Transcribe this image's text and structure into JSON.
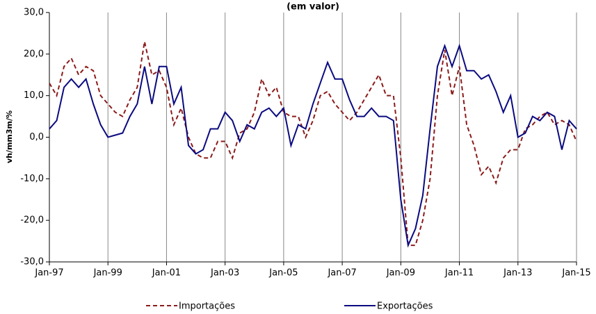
{
  "chart_data": {
    "type": "line",
    "title": "(em valor)",
    "y_label": "vh/mm3m/%",
    "x": [
      1997,
      1997.25,
      1997.5,
      1997.75,
      1998,
      1998.25,
      1998.5,
      1998.75,
      1999,
      1999.25,
      1999.5,
      1999.75,
      2000,
      2000.25,
      2000.5,
      2000.75,
      2001,
      2001.25,
      2001.5,
      2001.75,
      2002,
      2002.25,
      2002.5,
      2002.75,
      2003,
      2003.25,
      2003.5,
      2003.75,
      2004,
      2004.25,
      2004.5,
      2004.75,
      2005,
      2005.25,
      2005.5,
      2005.75,
      2006,
      2006.25,
      2006.5,
      2006.75,
      2007,
      2007.25,
      2007.5,
      2007.75,
      2008,
      2008.25,
      2008.5,
      2008.75,
      2009,
      2009.25,
      2009.5,
      2009.75,
      2010,
      2010.25,
      2010.5,
      2010.75,
      2011,
      2011.25,
      2011.5,
      2011.75,
      2012,
      2012.25,
      2012.5,
      2012.75,
      2013,
      2013.25,
      2013.5,
      2013.75,
      2014,
      2014.25,
      2014.5,
      2014.75,
      2015
    ],
    "series": [
      {
        "name": "Importações",
        "color": "#8b1a1a",
        "dash": true,
        "values": [
          13,
          10,
          17,
          19,
          15,
          17,
          16,
          10,
          8,
          6,
          5,
          9,
          12,
          23,
          15,
          16,
          12,
          3,
          7,
          0,
          -4,
          -5,
          -5,
          -1,
          -1,
          -5,
          1,
          2,
          6,
          14,
          10,
          12,
          6,
          5,
          5,
          0,
          4,
          10,
          11,
          8,
          6,
          4,
          6,
          9,
          12,
          15,
          10,
          10,
          -5,
          -26,
          -26,
          -20,
          -10,
          10,
          21,
          10,
          17,
          3,
          -2,
          -9,
          -7,
          -11,
          -5,
          -3,
          -3,
          2,
          3,
          5,
          6,
          3,
          4,
          3,
          -1
        ]
      },
      {
        "name": "Exportações",
        "color": "#0a0a80",
        "dash": false,
        "values": [
          2,
          4,
          12,
          14,
          12,
          14,
          8,
          3,
          0,
          0.5,
          1,
          5,
          8,
          17,
          8,
          17,
          17,
          8,
          12,
          -2,
          -4,
          -3,
          2,
          2,
          6,
          4,
          -1,
          3,
          2,
          6,
          7,
          5,
          7,
          -2,
          3,
          2,
          8,
          13,
          18,
          14,
          14,
          9,
          5,
          5,
          7,
          5,
          5,
          4,
          -15,
          -26,
          -22,
          -14,
          2,
          17,
          22,
          17,
          22,
          16,
          16,
          14,
          15,
          11,
          6,
          10,
          0,
          1,
          5,
          4,
          6,
          5,
          -3,
          4,
          2
        ]
      }
    ],
    "xlim": [
      1997,
      2015
    ],
    "xticks": [
      {
        "value": 1997,
        "label": "Jan-97"
      },
      {
        "value": 1999,
        "label": "Jan-99"
      },
      {
        "value": 2001,
        "label": "Jan-01"
      },
      {
        "value": 2003,
        "label": "Jan-03"
      },
      {
        "value": 2005,
        "label": "Jan-05"
      },
      {
        "value": 2007,
        "label": "Jan-07"
      },
      {
        "value": 2009,
        "label": "Jan-09"
      },
      {
        "value": 2011,
        "label": "Jan-11"
      },
      {
        "value": 2013,
        "label": "Jan-13"
      },
      {
        "value": 2015,
        "label": "Jan-15"
      }
    ],
    "ylim": [
      -30,
      30
    ],
    "yticks": [
      {
        "value": -30,
        "label": "-30,0"
      },
      {
        "value": -20,
        "label": "-20,0"
      },
      {
        "value": -10,
        "label": "-10,0"
      },
      {
        "value": 0,
        "label": "0,0"
      },
      {
        "value": 10,
        "label": "10,0"
      },
      {
        "value": 20,
        "label": "20,0"
      },
      {
        "value": 30,
        "label": "30,0"
      }
    ],
    "grid": "x",
    "legend": "bottom"
  }
}
